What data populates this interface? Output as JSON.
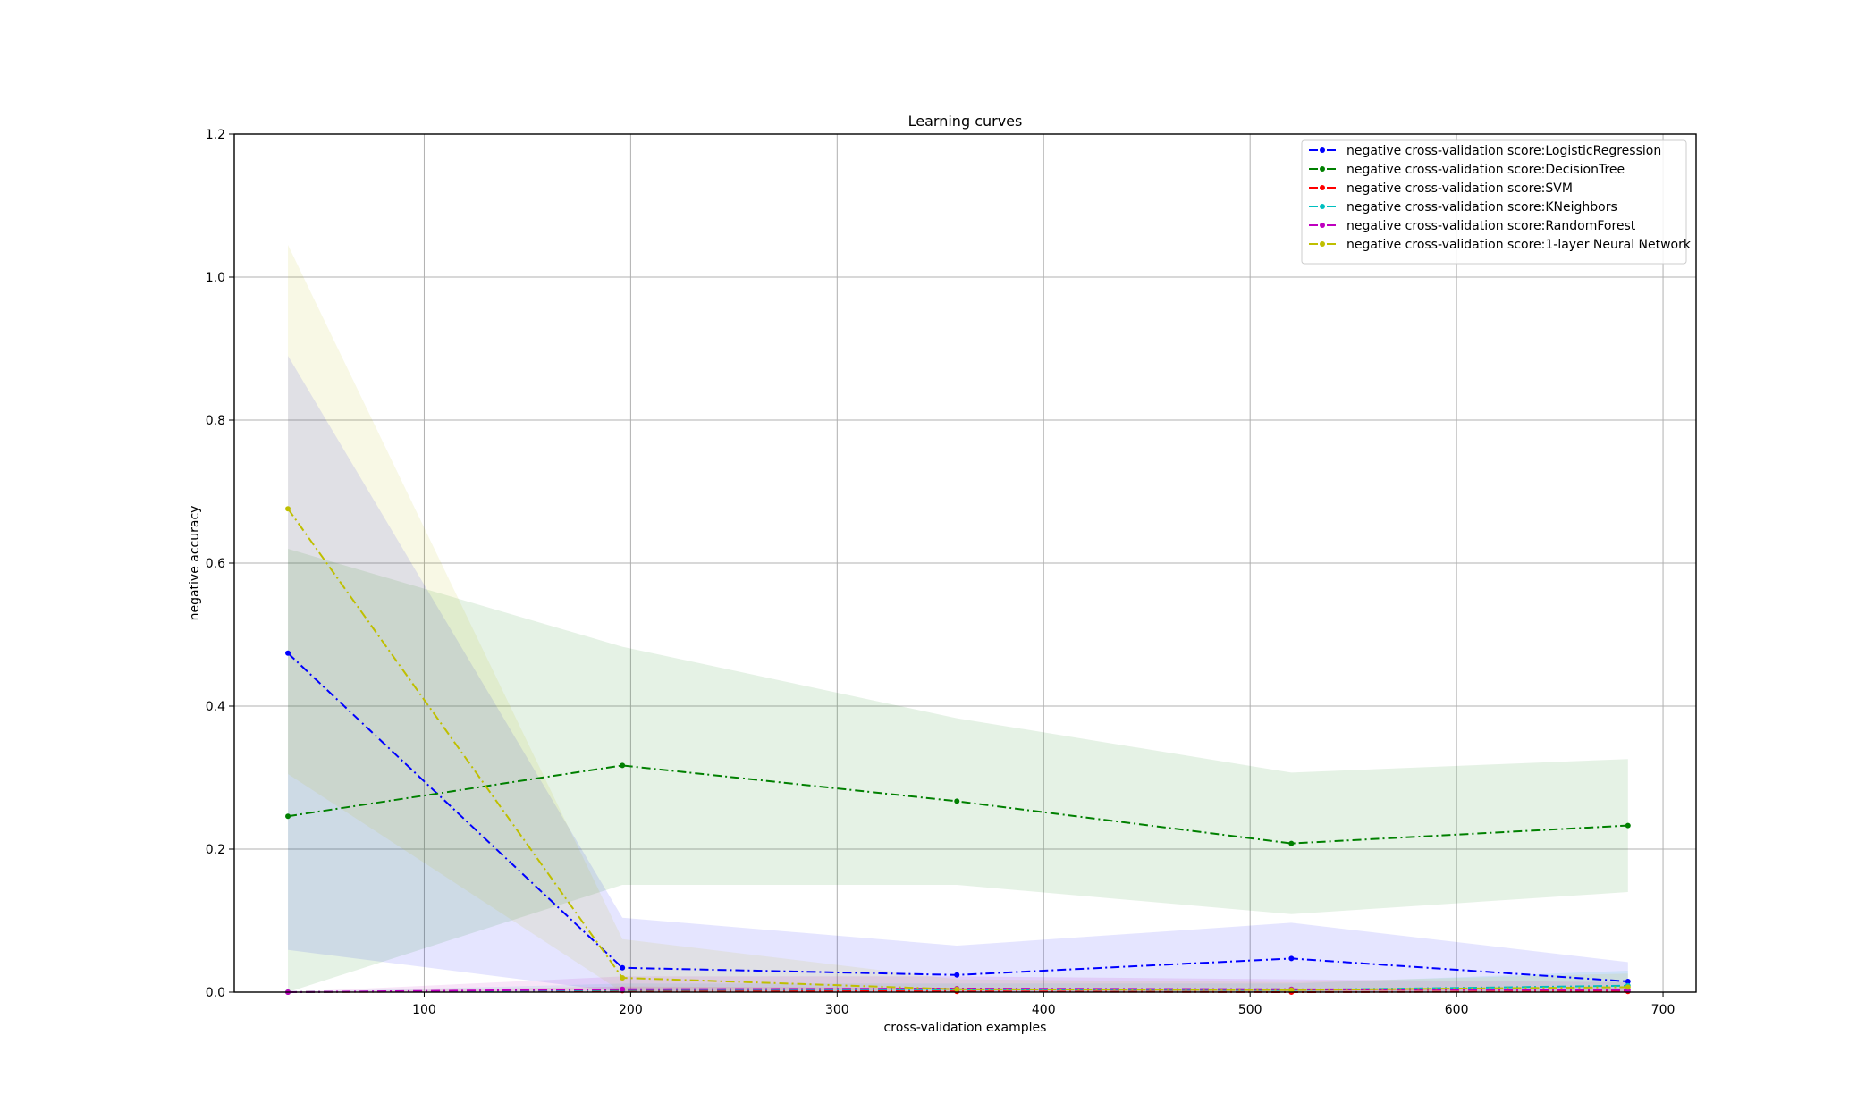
{
  "chart_data": {
    "type": "line",
    "title": "Learning curves",
    "xlabel": "cross-validation examples",
    "ylabel": "negative accuracy",
    "xlim": [
      8,
      716
    ],
    "ylim": [
      0.0,
      1.2
    ],
    "xticks": [
      100,
      200,
      300,
      400,
      500,
      600,
      700
    ],
    "yticks": [
      0.0,
      0.2,
      0.4,
      0.6,
      0.8,
      1.0,
      1.2
    ],
    "xtick_labels": [
      "100",
      "200",
      "300",
      "400",
      "500",
      "600",
      "700"
    ],
    "ytick_labels": [
      "0.0",
      "0.2",
      "0.4",
      "0.6",
      "0.8",
      "1.0",
      "1.2"
    ],
    "grid": true,
    "legend_position": "top-right",
    "x": [
      34,
      196,
      358,
      520,
      683
    ],
    "series": [
      {
        "name": "negative cross-validation score:LogisticRegression",
        "color": "#0000ff",
        "values": [
          0.474,
          0.034,
          0.024,
          0.047,
          0.015
        ],
        "band_low": [
          0.059,
          0.0,
          0.0,
          0.0,
          0.0
        ],
        "band_high": [
          0.89,
          0.104,
          0.065,
          0.097,
          0.042
        ]
      },
      {
        "name": "negative cross-validation score:DecisionTree",
        "color": "#008000",
        "values": [
          0.246,
          0.317,
          0.267,
          0.208,
          0.233
        ],
        "band_low": [
          0.0,
          0.15,
          0.15,
          0.109,
          0.14
        ],
        "band_high": [
          0.62,
          0.483,
          0.383,
          0.307,
          0.326
        ]
      },
      {
        "name": "negative cross-validation score:SVM",
        "color": "#ff0000",
        "values": [
          0.0,
          0.002,
          0.001,
          0.0,
          0.001
        ],
        "band_low": [
          0.0,
          0.0,
          0.0,
          0.0,
          0.0
        ],
        "band_high": [
          0.0,
          0.008,
          0.006,
          0.004,
          0.006
        ]
      },
      {
        "name": "negative cross-validation score:KNeighbors",
        "color": "#00bfbf",
        "values": [
          0.0,
          0.003,
          0.004,
          0.003,
          0.009
        ],
        "band_low": [
          0.0,
          0.0,
          0.0,
          0.0,
          0.0
        ],
        "band_high": [
          0.0,
          0.012,
          0.012,
          0.012,
          0.03
        ]
      },
      {
        "name": "negative cross-validation score:RandomForest",
        "color": "#bf00bf",
        "values": [
          0.0,
          0.004,
          0.005,
          0.004,
          0.003
        ],
        "band_low": [
          0.0,
          0.0,
          0.0,
          0.0,
          0.0
        ],
        "band_high": [
          0.0,
          0.022,
          0.022,
          0.018,
          0.014
        ]
      },
      {
        "name": "negative cross-validation score:1-layer Neural Network",
        "color": "#bfbf00",
        "values": [
          0.676,
          0.02,
          0.004,
          0.003,
          0.007
        ],
        "band_low": [
          0.305,
          0.0,
          0.0,
          0.0,
          0.0
        ],
        "band_high": [
          1.045,
          0.074,
          0.018,
          0.014,
          0.026
        ]
      }
    ]
  }
}
